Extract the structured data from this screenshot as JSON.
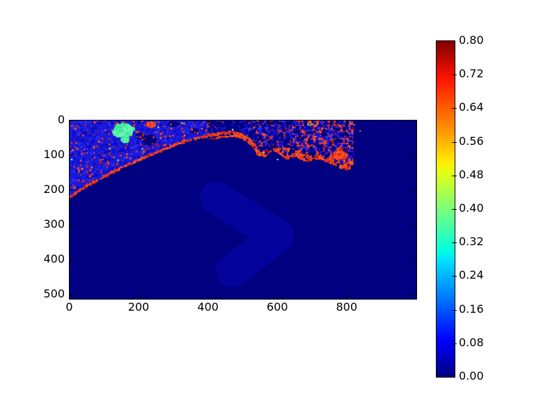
{
  "figure": {
    "background": "#ffffff",
    "frame_color": "#000000",
    "title": ""
  },
  "chart_data": {
    "type": "heatmap",
    "title": "",
    "xlabel": "",
    "ylabel": "",
    "grid": false,
    "x_tick_labels": [
      "0",
      "200",
      "400",
      "600",
      "800"
    ],
    "x_tick_values": [
      0,
      200,
      400,
      600,
      800
    ],
    "y_tick_labels": [
      "0",
      "100",
      "200",
      "300",
      "400",
      "500"
    ],
    "y_tick_values": [
      0,
      100,
      200,
      300,
      400,
      500
    ],
    "x_range": [
      0,
      1000
    ],
    "y_range": [
      0,
      512
    ],
    "y_axis_inverted": true,
    "colormap": "jet",
    "colorbar": {
      "vmin": 0.0,
      "vmax": 0.8,
      "tick_labels": [
        "0.80",
        "0.72",
        "0.64",
        "0.56",
        "0.48",
        "0.40",
        "0.32",
        "0.24",
        "0.16",
        "0.08",
        "0.00"
      ],
      "tick_values": [
        0.8,
        0.72,
        0.64,
        0.56,
        0.48,
        0.4,
        0.32,
        0.24,
        0.16,
        0.08,
        0.0
      ],
      "gradient_stops": [
        [
          0.0,
          "#00007f"
        ],
        [
          0.11,
          "#0000ff"
        ],
        [
          0.34,
          "#00dbff"
        ],
        [
          0.375,
          "#00ffe0"
        ],
        [
          0.5,
          "#7cff79"
        ],
        [
          0.61,
          "#e4ff13"
        ],
        [
          0.64,
          "#ffec00"
        ],
        [
          0.72,
          "#ffa100"
        ],
        [
          0.89,
          "#ff1200"
        ],
        [
          1.0,
          "#7f0000"
        ]
      ]
    },
    "image": {
      "seed": 1234,
      "palette": {
        "ocean": "#000080",
        "plume": "#04049c",
        "land_base": "#1a1ada",
        "land_blues": [
          "#0d0dca",
          "#2a2aee",
          "#1515e0",
          "#0909bf"
        ],
        "reds": [
          "#e23319",
          "#ff4a22",
          "#c81e08",
          "#ef5b2e"
        ],
        "greens": [
          "#52efa3",
          "#68f7b5",
          "#3ce392"
        ],
        "tick": "#000000"
      },
      "regions": {
        "ocean": {
          "value": 0.0
        },
        "plume": {
          "value": 0.05,
          "path": [
            [
              423,
              222
            ],
            [
              600,
              330
            ],
            [
              470,
              432
            ]
          ],
          "width": 95
        },
        "land": {
          "value": 0.12,
          "coastline": [
            [
              0,
              222
            ],
            [
              30,
              200
            ],
            [
              60,
              182
            ],
            [
              91,
              167
            ],
            [
              125,
              148
            ],
            [
              155,
              132
            ],
            [
              191,
              118
            ],
            [
              225,
              102
            ],
            [
              258,
              88
            ],
            [
              290,
              76
            ],
            [
              320,
              64
            ],
            [
              350,
              55
            ],
            [
              380,
              48
            ],
            [
              410,
              42
            ],
            [
              440,
              36
            ],
            [
              470,
              34
            ],
            [
              500,
              40
            ],
            [
              525,
              60
            ],
            [
              545,
              88
            ],
            [
              565,
              92
            ],
            [
              585,
              70
            ],
            [
              605,
              82
            ],
            [
              630,
              102
            ],
            [
              655,
              92
            ],
            [
              680,
              108
            ],
            [
              705,
              98
            ],
            [
              730,
              104
            ],
            [
              755,
              112
            ],
            [
              780,
              124
            ],
            [
              805,
              132
            ],
            [
              815,
              120
            ]
          ],
          "right_edge": [
            [
              820,
              96
            ],
            [
              812,
              60
            ],
            [
              822,
              28
            ],
            [
              808,
              8
            ],
            [
              805,
              0
            ]
          ]
        },
        "bays": [
          [
            230,
            56,
            22,
            16
          ],
          [
            205,
            45,
            13,
            10
          ],
          [
            300,
            10,
            18,
            8
          ],
          [
            360,
            30,
            12,
            8
          ],
          [
            420,
            12,
            15,
            8
          ],
          [
            500,
            16,
            10,
            6
          ],
          [
            548,
            40,
            14,
            10
          ],
          [
            590,
            18,
            12,
            7
          ],
          [
            620,
            12,
            13,
            7
          ],
          [
            660,
            45,
            12,
            9
          ],
          [
            700,
            24,
            11,
            7
          ],
          [
            742,
            46,
            13,
            8
          ],
          [
            762,
            14,
            13,
            8
          ],
          [
            795,
            75,
            11,
            9
          ],
          [
            515,
            55,
            10,
            7
          ]
        ],
        "land_speckle": {
          "blue_count": 2600,
          "red_count": 520,
          "x_max": 420
        },
        "marsh_band": {
          "value": 0.68,
          "x_min": 400,
          "x_max": 815,
          "extra_depth": 10,
          "red_count": 3400,
          "blue_count": 1100,
          "hole_count": 420
        },
        "green_patches": [
          {
            "cx": 155,
            "cy": 28,
            "sx": 30,
            "sy": 20,
            "count": 650
          },
          {
            "cx": 160,
            "cy": 56,
            "sx": 10,
            "sy": 8,
            "count": 90
          },
          {
            "cx": 692,
            "cy": 13,
            "sx": 22,
            "sy": 9,
            "count": 280
          }
        ],
        "red_clusters": [
          {
            "cx": 775,
            "cy": 100,
            "sx": 20,
            "sy": 14,
            "count": 180
          },
          {
            "cx": 235,
            "cy": 12,
            "sx": 14,
            "sy": 9,
            "count": 130
          }
        ],
        "coast_fringe": {
          "x_max": 540,
          "count": 600
        },
        "green_specks": [
          [
            6,
            112
          ],
          [
            116,
            80
          ],
          [
            140,
            114
          ],
          [
            210,
            82
          ],
          [
            256,
            20
          ],
          [
            324,
            8
          ],
          [
            470,
            26
          ],
          [
            505,
            48
          ],
          [
            560,
            92
          ],
          [
            600,
            112
          ]
        ],
        "ocean_red_specks": [
          [
            821,
            12
          ],
          [
            838,
            30
          ]
        ]
      }
    }
  }
}
